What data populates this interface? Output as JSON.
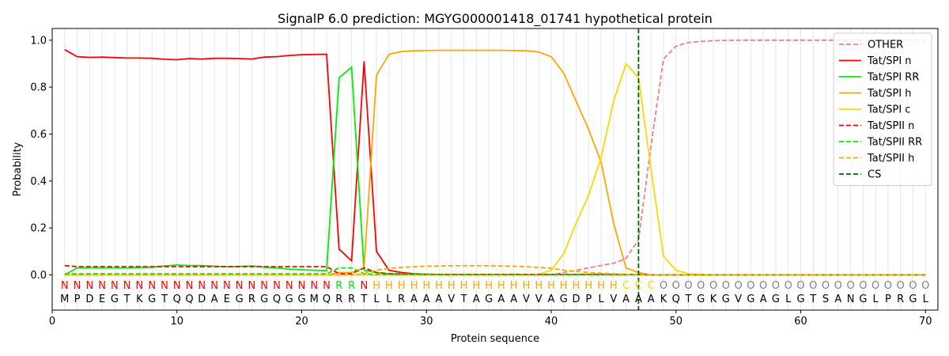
{
  "chart_data": {
    "type": "line",
    "title": "SignalP 6.0 prediction: MGYG000001418_01741 hypothetical protein",
    "xlabel": "Protein sequence",
    "ylabel": "Probability",
    "xlim": [
      0,
      71
    ],
    "ylim": [
      -0.15,
      1.05
    ],
    "xticks": [
      0,
      10,
      20,
      30,
      40,
      50,
      60,
      70
    ],
    "yticks": [
      0.0,
      0.2,
      0.4,
      0.6,
      0.8,
      1.0
    ],
    "ytick_labels": [
      "0.0",
      "0.2",
      "0.4",
      "0.6",
      "0.8",
      "1.0"
    ],
    "grid": "vertical lines at every residue",
    "legend_position": "top-right",
    "cleavage_site": 47,
    "sequence": "MPDEGTKGTQQDAEGRGQGGMQRRTLLRAAAVTAGAAVVAGDPLVAAAKQTGKGVGAGLGTSANGLPRGL",
    "labels": "NNNNNNNNNNNNNNNNNNNNNNRRNHHHHHHHHHHHHHHHHHHHHCCCOOOOOOOOOOOOOOOOOOOOOOO",
    "label_colors": {
      "N": "#ff0000",
      "R": "#00ee00",
      "H": "#ffa500",
      "C": "#ffd700",
      "O": "#808080"
    },
    "series": [
      {
        "name": "OTHER",
        "color": "#f08080",
        "dash": true,
        "values": [
          0.0,
          0.0,
          0.0,
          0.0,
          0.0,
          0.0,
          0.0,
          0.0,
          0.0,
          0.0,
          0.0,
          0.0,
          0.0,
          0.0,
          0.0,
          0.0,
          0.0,
          0.0,
          0.0,
          0.0,
          0.0,
          0.0,
          0.0,
          0.0,
          0.0,
          0.0,
          0.0,
          0.0,
          0.0,
          0.0,
          0.0,
          0.0,
          0.0,
          0.0,
          0.0,
          0.0,
          0.0,
          0.0,
          0.0,
          0.0,
          0.01,
          0.02,
          0.03,
          0.04,
          0.05,
          0.07,
          0.15,
          0.55,
          0.92,
          0.975,
          0.99,
          0.995,
          0.998,
          0.999,
          1.0,
          1.0,
          1.0,
          1.0,
          1.0,
          1.0,
          1.0,
          1.0,
          1.0,
          1.0,
          1.0,
          1.0,
          1.0,
          1.0,
          1.0,
          1.0
        ]
      },
      {
        "name": "Tat/SPI n",
        "color": "#ff0000",
        "dash": false,
        "values": [
          0.96,
          0.93,
          0.927,
          0.928,
          0.926,
          0.924,
          0.924,
          0.923,
          0.919,
          0.917,
          0.922,
          0.92,
          0.923,
          0.923,
          0.922,
          0.92,
          0.928,
          0.93,
          0.935,
          0.938,
          0.939,
          0.94,
          0.11,
          0.06,
          0.91,
          0.1,
          0.02,
          0.01,
          0.005,
          0.003,
          0.002,
          0.002,
          0.002,
          0.002,
          0.002,
          0.002,
          0.002,
          0.002,
          0.002,
          0.002,
          0.002,
          0.002,
          0.002,
          0.002,
          0.002,
          0.002,
          0.002,
          0.0,
          0.0,
          0.0,
          0.0,
          0.0,
          0.0,
          0.0,
          0.0,
          0.0,
          0.0,
          0.0,
          0.0,
          0.0,
          0.0,
          0.0,
          0.0,
          0.0,
          0.0,
          0.0,
          0.0,
          0.0,
          0.0,
          0.0
        ]
      },
      {
        "name": "Tat/SPI RR",
        "color": "#00ee00",
        "dash": false,
        "values": [
          0.0,
          0.03,
          0.03,
          0.03,
          0.03,
          0.03,
          0.032,
          0.033,
          0.038,
          0.042,
          0.04,
          0.04,
          0.037,
          0.035,
          0.036,
          0.038,
          0.033,
          0.03,
          0.025,
          0.022,
          0.02,
          0.018,
          0.84,
          0.885,
          0.02,
          0.01,
          0.005,
          0.005,
          0.003,
          0.003,
          0.002,
          0.002,
          0.002,
          0.002,
          0.002,
          0.002,
          0.002,
          0.002,
          0.002,
          0.002,
          0.002,
          0.002,
          0.002,
          0.002,
          0.002,
          0.002,
          0.002,
          0.0,
          0.0,
          0.0,
          0.0,
          0.0,
          0.0,
          0.0,
          0.0,
          0.0,
          0.0,
          0.0,
          0.0,
          0.0,
          0.0,
          0.0,
          0.0,
          0.0,
          0.0,
          0.0,
          0.0,
          0.0,
          0.0,
          0.0
        ]
      },
      {
        "name": "Tat/SPI h",
        "color": "#ffa500",
        "dash": false,
        "values": [
          0.0,
          0.0,
          0.0,
          0.0,
          0.0,
          0.0,
          0.0,
          0.0,
          0.0,
          0.0,
          0.0,
          0.0,
          0.0,
          0.0,
          0.0,
          0.0,
          0.0,
          0.0,
          0.0,
          0.0,
          0.0,
          0.0,
          0.01,
          0.01,
          0.03,
          0.85,
          0.94,
          0.952,
          0.955,
          0.956,
          0.957,
          0.957,
          0.957,
          0.957,
          0.957,
          0.957,
          0.956,
          0.955,
          0.95,
          0.93,
          0.86,
          0.74,
          0.62,
          0.48,
          0.22,
          0.03,
          0.01,
          0.0,
          0.0,
          0.0,
          0.0,
          0.0,
          0.0,
          0.0,
          0.0,
          0.0,
          0.0,
          0.0,
          0.0,
          0.0,
          0.0,
          0.0,
          0.0,
          0.0,
          0.0,
          0.0,
          0.0,
          0.0,
          0.0,
          0.0
        ]
      },
      {
        "name": "Tat/SPI c",
        "color": "#ffd700",
        "dash": false,
        "values": [
          0.0,
          0.0,
          0.0,
          0.0,
          0.0,
          0.0,
          0.0,
          0.0,
          0.0,
          0.0,
          0.0,
          0.0,
          0.0,
          0.0,
          0.0,
          0.0,
          0.0,
          0.0,
          0.0,
          0.0,
          0.0,
          0.0,
          0.0,
          0.0,
          0.0,
          0.0,
          0.0,
          0.0,
          0.0,
          0.0,
          0.0,
          0.0,
          0.0,
          0.0,
          0.0,
          0.0,
          0.0,
          0.0,
          0.003,
          0.02,
          0.09,
          0.22,
          0.34,
          0.5,
          0.74,
          0.9,
          0.84,
          0.45,
          0.08,
          0.02,
          0.005,
          0.002,
          0.0,
          0.0,
          0.0,
          0.0,
          0.0,
          0.0,
          0.0,
          0.0,
          0.0,
          0.0,
          0.0,
          0.0,
          0.0,
          0.0,
          0.0,
          0.0,
          0.0,
          0.0
        ]
      },
      {
        "name": "Tat/SPII n",
        "color": "#ff0000",
        "dash": true,
        "values": [
          0.04,
          0.035,
          0.035,
          0.035,
          0.035,
          0.035,
          0.035,
          0.035,
          0.035,
          0.035,
          0.035,
          0.035,
          0.035,
          0.035,
          0.035,
          0.035,
          0.035,
          0.035,
          0.035,
          0.035,
          0.035,
          0.035,
          0.005,
          0.005,
          0.03,
          0.01,
          0.005,
          0.003,
          0.003,
          0.002,
          0.002,
          0.002,
          0.002,
          0.002,
          0.002,
          0.002,
          0.002,
          0.002,
          0.002,
          0.002,
          0.002,
          0.002,
          0.002,
          0.002,
          0.001,
          0.001,
          0.001,
          0.0,
          0.0,
          0.0,
          0.0,
          0.0,
          0.0,
          0.0,
          0.0,
          0.0,
          0.0,
          0.0,
          0.0,
          0.0,
          0.0,
          0.0,
          0.0,
          0.0,
          0.0,
          0.0,
          0.0,
          0.0,
          0.0,
          0.0
        ]
      },
      {
        "name": "Tat/SPII RR",
        "color": "#00ee00",
        "dash": true,
        "values": [
          0.005,
          0.005,
          0.005,
          0.005,
          0.005,
          0.005,
          0.005,
          0.005,
          0.005,
          0.005,
          0.005,
          0.005,
          0.005,
          0.005,
          0.005,
          0.005,
          0.005,
          0.005,
          0.005,
          0.005,
          0.005,
          0.005,
          0.03,
          0.03,
          0.005,
          0.002,
          0.001,
          0.001,
          0.001,
          0.001,
          0.0,
          0.0,
          0.0,
          0.0,
          0.0,
          0.0,
          0.0,
          0.0,
          0.0,
          0.0,
          0.0,
          0.0,
          0.0,
          0.0,
          0.0,
          0.0,
          0.0,
          0.0,
          0.0,
          0.0,
          0.0,
          0.0,
          0.0,
          0.0,
          0.0,
          0.0,
          0.0,
          0.0,
          0.0,
          0.0,
          0.0,
          0.0,
          0.0,
          0.0,
          0.0,
          0.0,
          0.0,
          0.0,
          0.0,
          0.0
        ]
      },
      {
        "name": "Tat/SPII h",
        "color": "#ffa500",
        "dash": true,
        "values": [
          0.0,
          0.0,
          0.0,
          0.0,
          0.0,
          0.0,
          0.0,
          0.0,
          0.0,
          0.0,
          0.0,
          0.0,
          0.0,
          0.0,
          0.0,
          0.0,
          0.0,
          0.0,
          0.0,
          0.0,
          0.0,
          0.0,
          0.0,
          0.0,
          0.005,
          0.02,
          0.028,
          0.032,
          0.035,
          0.037,
          0.038,
          0.039,
          0.039,
          0.039,
          0.039,
          0.038,
          0.037,
          0.035,
          0.032,
          0.028,
          0.02,
          0.015,
          0.01,
          0.007,
          0.005,
          0.002,
          0.001,
          0.0,
          0.0,
          0.0,
          0.0,
          0.0,
          0.0,
          0.0,
          0.0,
          0.0,
          0.0,
          0.0,
          0.0,
          0.0,
          0.0,
          0.0,
          0.0,
          0.0,
          0.0,
          0.0,
          0.0,
          0.0,
          0.0,
          0.0
        ]
      },
      {
        "name": "CS",
        "color": "#006400",
        "dash": true,
        "values": []
      }
    ]
  }
}
